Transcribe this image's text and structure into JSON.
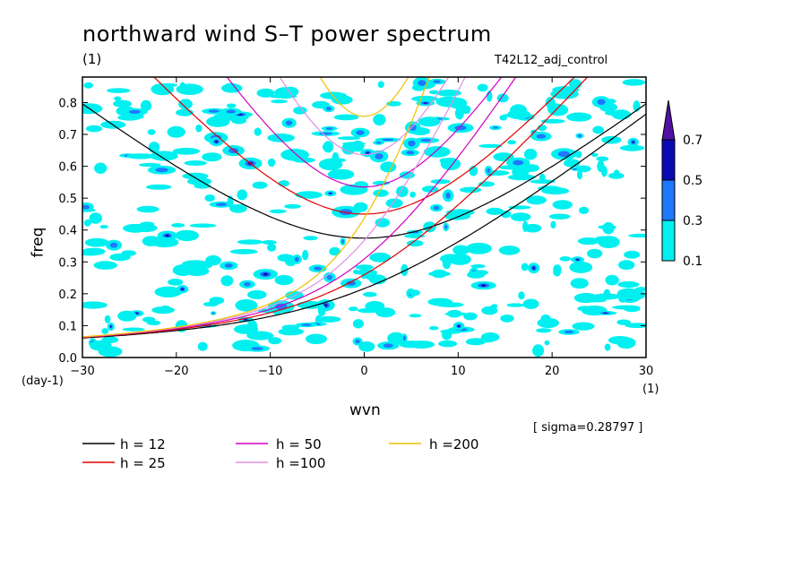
{
  "chart_data": {
    "type": "contour",
    "title": "northward wind S–T power spectrum",
    "subtitle_left": "(1)",
    "subtitle_right": "T42L12_adj_control",
    "xlabel": "wvn",
    "ylabel": "freq",
    "x_unit": "(1)",
    "y_unit": "(day-1)",
    "xlim": [
      -30,
      30
    ],
    "ylim": [
      0.0,
      0.88
    ],
    "x_ticks": [
      -30,
      -20,
      -10,
      0,
      10,
      20,
      30
    ],
    "x_tick_labels": [
      "−30",
      "−20",
      "−10",
      "0",
      "10",
      "20",
      "30"
    ],
    "y_ticks": [
      0.0,
      0.1,
      0.2,
      0.3,
      0.4,
      0.5,
      0.6,
      0.7,
      0.8
    ],
    "y_tick_labels": [
      "0.0",
      "0.1",
      "0.2",
      "0.3",
      "0.4",
      "0.5",
      "0.6",
      "0.7",
      "0.8"
    ],
    "annotation": "[ sigma=0.28797 ]",
    "contour_levels": [
      0.1,
      0.3,
      0.5,
      0.7
    ],
    "colorbar": {
      "labels": [
        "0.1",
        "0.3",
        "0.5",
        "0.7"
      ],
      "colors": [
        "#00f0f0",
        "#1e78ff",
        "#0a0ab4",
        "#5010a0"
      ]
    },
    "series": [
      {
        "name": "h = 12",
        "color": "#000000",
        "equatorial_depth_m": 12,
        "legend_label": "h = 12"
      },
      {
        "name": "h = 25",
        "color": "#e00000",
        "equatorial_depth_m": 25,
        "legend_label": "h = 25"
      },
      {
        "name": "h = 50",
        "color": "#d000c0",
        "equatorial_depth_m": 50,
        "legend_label": "h = 50"
      },
      {
        "name": "h =100",
        "color": "#e090e0",
        "equatorial_depth_m": 100,
        "legend_label": "h =100"
      },
      {
        "name": "h =200",
        "color": "#f0c000",
        "equatorial_depth_m": 200,
        "legend_label": "h =200"
      }
    ],
    "grid": false,
    "legend_placement": "bottom"
  }
}
